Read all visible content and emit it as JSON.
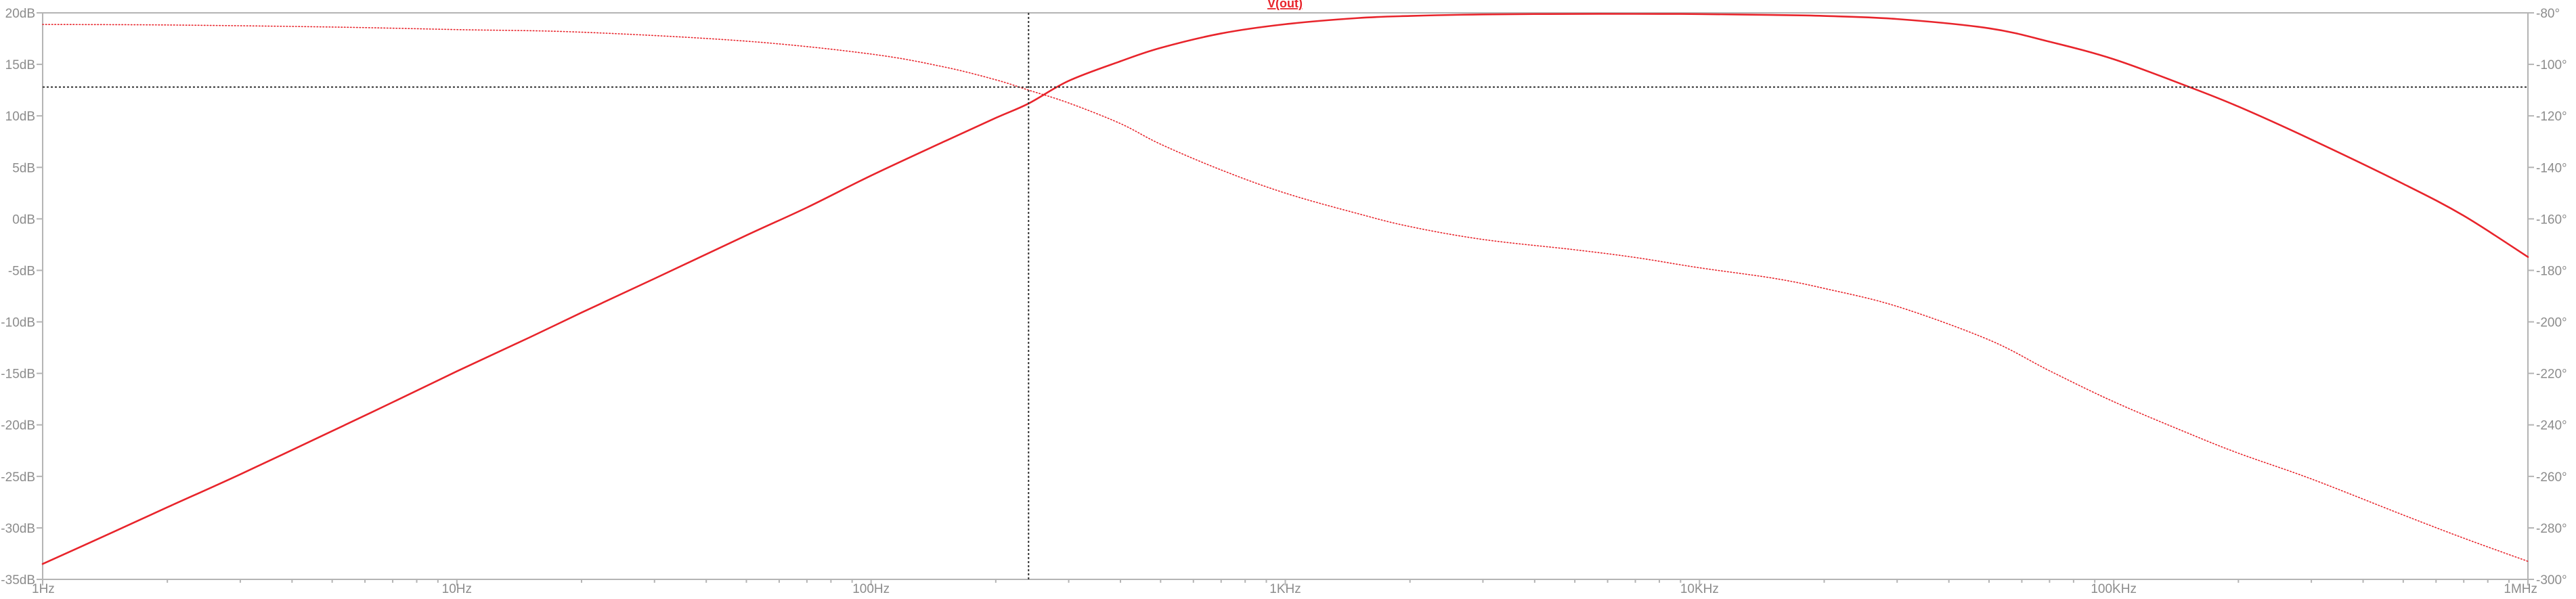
{
  "chart_data": {
    "type": "line",
    "title": "V(out)",
    "xaxis": {
      "scale": "log",
      "range": [
        1,
        1000000
      ],
      "ticks": [
        {
          "value": 1,
          "label": "1Hz"
        },
        {
          "value": 10,
          "label": "10Hz"
        },
        {
          "value": 100,
          "label": "100Hz"
        },
        {
          "value": 1000,
          "label": "1KHz"
        },
        {
          "value": 10000,
          "label": "10KHz"
        },
        {
          "value": 100000,
          "label": "100KHz"
        },
        {
          "value": 1000000,
          "label": "1MHz"
        }
      ]
    },
    "yaxis_left": {
      "range": [
        -35,
        20
      ],
      "ticks": [
        {
          "value": 20,
          "label": "20dB"
        },
        {
          "value": 15,
          "label": "15dB"
        },
        {
          "value": 10,
          "label": "10dB"
        },
        {
          "value": 5,
          "label": "5dB"
        },
        {
          "value": 0,
          "label": "0dB"
        },
        {
          "value": -5,
          "label": "-5dB"
        },
        {
          "value": -10,
          "label": "-10dB"
        },
        {
          "value": -15,
          "label": "-15dB"
        },
        {
          "value": -20,
          "label": "-20dB"
        },
        {
          "value": -25,
          "label": "-25dB"
        },
        {
          "value": -30,
          "label": "-30dB"
        },
        {
          "value": -35,
          "label": "-35dB"
        }
      ]
    },
    "yaxis_right": {
      "range": [
        -300,
        -80
      ],
      "ticks": [
        {
          "value": -80,
          "label": "-80°"
        },
        {
          "value": -100,
          "label": "-100°"
        },
        {
          "value": -120,
          "label": "-120°"
        },
        {
          "value": -140,
          "label": "-140°"
        },
        {
          "value": -160,
          "label": "-160°"
        },
        {
          "value": -180,
          "label": "-180°"
        },
        {
          "value": -200,
          "label": "-200°"
        },
        {
          "value": -220,
          "label": "-220°"
        },
        {
          "value": -240,
          "label": "-240°"
        },
        {
          "value": -260,
          "label": "-260°"
        },
        {
          "value": -280,
          "label": "-280°"
        },
        {
          "value": -300,
          "label": "-300°"
        }
      ]
    },
    "series": [
      {
        "name": "V(out)",
        "quantity": "magnitude",
        "axis": "left",
        "style": "solid",
        "color": "#e8242b",
        "points": [
          [
            1,
            -33.5
          ],
          [
            1.5,
            -30.3
          ],
          [
            2,
            -28.0
          ],
          [
            3,
            -24.8
          ],
          [
            5,
            -20.6
          ],
          [
            7,
            -17.8
          ],
          [
            10,
            -14.8
          ],
          [
            15,
            -11.5
          ],
          [
            20,
            -9.1
          ],
          [
            30,
            -5.8
          ],
          [
            50,
            -1.6
          ],
          [
            70,
            1.1
          ],
          [
            100,
            4.2
          ],
          [
            150,
            7.5
          ],
          [
            200,
            9.8
          ],
          [
            240,
            11.2
          ],
          [
            300,
            13.4
          ],
          [
            400,
            15.3
          ],
          [
            500,
            16.6
          ],
          [
            700,
            18.0
          ],
          [
            1000,
            18.9
          ],
          [
            1500,
            19.5
          ],
          [
            2000,
            19.7
          ],
          [
            3000,
            19.85
          ],
          [
            5000,
            19.9
          ],
          [
            8000,
            19.9
          ],
          [
            10000,
            19.88
          ],
          [
            15000,
            19.8
          ],
          [
            20000,
            19.7
          ],
          [
            30000,
            19.4
          ],
          [
            50000,
            18.5
          ],
          [
            70000,
            17.2
          ],
          [
            100000,
            15.5
          ],
          [
            150000,
            12.9
          ],
          [
            200000,
            10.9
          ],
          [
            300000,
            7.7
          ],
          [
            500000,
            3.4
          ],
          [
            700000,
            0.3
          ],
          [
            1000000,
            -3.7
          ]
        ]
      },
      {
        "name": "V(out)",
        "quantity": "phase",
        "axis": "right",
        "style": "dotted",
        "color": "#e8242b",
        "points": [
          [
            1,
            -84.5
          ],
          [
            2,
            -84.7
          ],
          [
            5,
            -85.5
          ],
          [
            10,
            -86.5
          ],
          [
            20,
            -87.5
          ],
          [
            50,
            -91
          ],
          [
            100,
            -96
          ],
          [
            150,
            -101
          ],
          [
            200,
            -106
          ],
          [
            240,
            -110
          ],
          [
            300,
            -115
          ],
          [
            400,
            -123
          ],
          [
            500,
            -131
          ],
          [
            700,
            -141
          ],
          [
            1000,
            -150
          ],
          [
            1500,
            -158
          ],
          [
            2000,
            -163
          ],
          [
            3000,
            -168
          ],
          [
            5000,
            -172
          ],
          [
            7000,
            -175
          ],
          [
            10000,
            -179
          ],
          [
            15000,
            -183
          ],
          [
            20000,
            -187
          ],
          [
            30000,
            -194
          ],
          [
            50000,
            -207
          ],
          [
            70000,
            -219
          ],
          [
            100000,
            -231
          ],
          [
            150000,
            -243
          ],
          [
            200000,
            -251
          ],
          [
            300000,
            -261
          ],
          [
            500000,
            -275
          ],
          [
            700000,
            -284
          ],
          [
            1000000,
            -293
          ]
        ]
      }
    ],
    "cursor": {
      "x": 240,
      "y": 12.8
    },
    "grid": false,
    "legend": "top-center"
  }
}
